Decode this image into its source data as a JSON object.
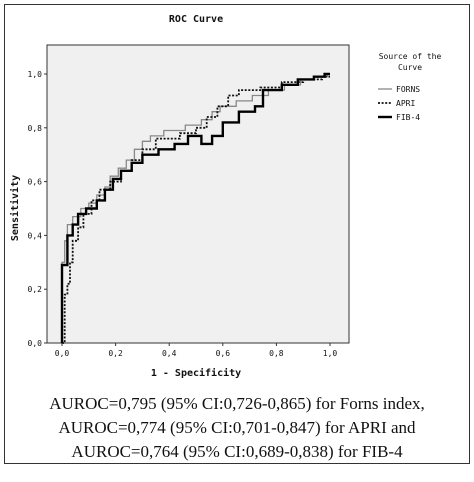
{
  "chart_data": {
    "type": "line",
    "title": "ROC Curve",
    "xlabel": "1 - Specificity",
    "ylabel": "Sensitivity",
    "xlim": [
      0,
      1
    ],
    "ylim": [
      0,
      1
    ],
    "xticks": [
      "0,0",
      "0,2",
      "0,4",
      "0,6",
      "0,8",
      "1,0"
    ],
    "yticks": [
      "0,0",
      "0,2",
      "0,4",
      "0,6",
      "0,8",
      "1,0"
    ],
    "grid": false,
    "legend": {
      "title_line1": "Source of the",
      "title_line2": "Curve",
      "placement": "right"
    },
    "plot_background": "#f0f0f0",
    "series": [
      {
        "name": "FORNS",
        "color": "#888888",
        "dash": "solid",
        "points": [
          [
            0,
            0
          ],
          [
            0,
            0.3
          ],
          [
            0.01,
            0.3
          ],
          [
            0.01,
            0.38
          ],
          [
            0.02,
            0.38
          ],
          [
            0.02,
            0.44
          ],
          [
            0.04,
            0.44
          ],
          [
            0.04,
            0.47
          ],
          [
            0.07,
            0.47
          ],
          [
            0.07,
            0.5
          ],
          [
            0.1,
            0.5
          ],
          [
            0.1,
            0.52
          ],
          [
            0.13,
            0.52
          ],
          [
            0.13,
            0.55
          ],
          [
            0.16,
            0.55
          ],
          [
            0.16,
            0.58
          ],
          [
            0.18,
            0.58
          ],
          [
            0.18,
            0.62
          ],
          [
            0.21,
            0.62
          ],
          [
            0.21,
            0.65
          ],
          [
            0.24,
            0.65
          ],
          [
            0.24,
            0.68
          ],
          [
            0.27,
            0.68
          ],
          [
            0.27,
            0.72
          ],
          [
            0.3,
            0.72
          ],
          [
            0.3,
            0.75
          ],
          [
            0.33,
            0.75
          ],
          [
            0.33,
            0.77
          ],
          [
            0.38,
            0.77
          ],
          [
            0.38,
            0.79
          ],
          [
            0.46,
            0.79
          ],
          [
            0.46,
            0.81
          ],
          [
            0.52,
            0.81
          ],
          [
            0.52,
            0.83
          ],
          [
            0.56,
            0.83
          ],
          [
            0.56,
            0.86
          ],
          [
            0.59,
            0.86
          ],
          [
            0.59,
            0.88
          ],
          [
            0.65,
            0.88
          ],
          [
            0.65,
            0.9
          ],
          [
            0.71,
            0.9
          ],
          [
            0.71,
            0.92
          ],
          [
            0.77,
            0.92
          ],
          [
            0.77,
            0.94
          ],
          [
            0.83,
            0.94
          ],
          [
            0.83,
            0.96
          ],
          [
            0.89,
            0.96
          ],
          [
            0.89,
            0.98
          ],
          [
            0.94,
            0.98
          ],
          [
            0.94,
            0.99
          ],
          [
            0.99,
            0.99
          ],
          [
            0.99,
            1.0
          ],
          [
            1.0,
            1.0
          ]
        ]
      },
      {
        "name": "APRI",
        "color": "#111111",
        "dash": "dotted",
        "points": [
          [
            0,
            0
          ],
          [
            0.01,
            0
          ],
          [
            0.01,
            0.18
          ],
          [
            0.02,
            0.18
          ],
          [
            0.02,
            0.22
          ],
          [
            0.03,
            0.22
          ],
          [
            0.03,
            0.3
          ],
          [
            0.04,
            0.3
          ],
          [
            0.04,
            0.38
          ],
          [
            0.06,
            0.38
          ],
          [
            0.06,
            0.43
          ],
          [
            0.08,
            0.43
          ],
          [
            0.08,
            0.48
          ],
          [
            0.11,
            0.48
          ],
          [
            0.11,
            0.53
          ],
          [
            0.14,
            0.53
          ],
          [
            0.14,
            0.57
          ],
          [
            0.18,
            0.57
          ],
          [
            0.18,
            0.6
          ],
          [
            0.22,
            0.6
          ],
          [
            0.22,
            0.64
          ],
          [
            0.26,
            0.64
          ],
          [
            0.26,
            0.68
          ],
          [
            0.3,
            0.68
          ],
          [
            0.3,
            0.72
          ],
          [
            0.35,
            0.72
          ],
          [
            0.35,
            0.76
          ],
          [
            0.44,
            0.76
          ],
          [
            0.44,
            0.78
          ],
          [
            0.5,
            0.78
          ],
          [
            0.5,
            0.8
          ],
          [
            0.54,
            0.8
          ],
          [
            0.54,
            0.84
          ],
          [
            0.58,
            0.84
          ],
          [
            0.58,
            0.88
          ],
          [
            0.62,
            0.88
          ],
          [
            0.62,
            0.92
          ],
          [
            0.66,
            0.92
          ],
          [
            0.66,
            0.94
          ],
          [
            0.74,
            0.94
          ],
          [
            0.74,
            0.95
          ],
          [
            0.82,
            0.95
          ],
          [
            0.82,
            0.97
          ],
          [
            0.9,
            0.97
          ],
          [
            0.9,
            0.98
          ],
          [
            0.97,
            0.98
          ],
          [
            0.97,
            0.99
          ],
          [
            1.0,
            0.99
          ]
        ]
      },
      {
        "name": "FIB-4",
        "color": "#000000",
        "dash": "solid-thick",
        "points": [
          [
            0,
            0
          ],
          [
            0,
            0.29
          ],
          [
            0.02,
            0.29
          ],
          [
            0.02,
            0.4
          ],
          [
            0.04,
            0.4
          ],
          [
            0.04,
            0.44
          ],
          [
            0.06,
            0.44
          ],
          [
            0.06,
            0.48
          ],
          [
            0.09,
            0.48
          ],
          [
            0.09,
            0.5
          ],
          [
            0.13,
            0.5
          ],
          [
            0.13,
            0.53
          ],
          [
            0.16,
            0.53
          ],
          [
            0.16,
            0.57
          ],
          [
            0.19,
            0.57
          ],
          [
            0.19,
            0.61
          ],
          [
            0.22,
            0.61
          ],
          [
            0.22,
            0.64
          ],
          [
            0.26,
            0.64
          ],
          [
            0.26,
            0.67
          ],
          [
            0.3,
            0.67
          ],
          [
            0.3,
            0.7
          ],
          [
            0.36,
            0.7
          ],
          [
            0.36,
            0.72
          ],
          [
            0.42,
            0.72
          ],
          [
            0.42,
            0.74
          ],
          [
            0.47,
            0.74
          ],
          [
            0.47,
            0.77
          ],
          [
            0.52,
            0.77
          ],
          [
            0.52,
            0.74
          ],
          [
            0.56,
            0.74
          ],
          [
            0.56,
            0.77
          ],
          [
            0.6,
            0.77
          ],
          [
            0.6,
            0.82
          ],
          [
            0.66,
            0.82
          ],
          [
            0.66,
            0.86
          ],
          [
            0.72,
            0.86
          ],
          [
            0.72,
            0.88
          ],
          [
            0.75,
            0.88
          ],
          [
            0.75,
            0.94
          ],
          [
            0.82,
            0.94
          ],
          [
            0.82,
            0.96
          ],
          [
            0.88,
            0.96
          ],
          [
            0.88,
            0.98
          ],
          [
            0.94,
            0.98
          ],
          [
            0.94,
            0.99
          ],
          [
            0.98,
            0.99
          ],
          [
            0.98,
            1.0
          ],
          [
            1.0,
            1.0
          ]
        ]
      }
    ]
  },
  "caption": {
    "line1": "AUROC=0,795 (95% CI:0,726-0,865) for Forns index,",
    "line2": "AUROC=0,774 (95% CI:0,701-0,847) for APRI and",
    "line3": "AUROC=0,764 (95% CI:0,689-0,838) for FIB-4"
  }
}
